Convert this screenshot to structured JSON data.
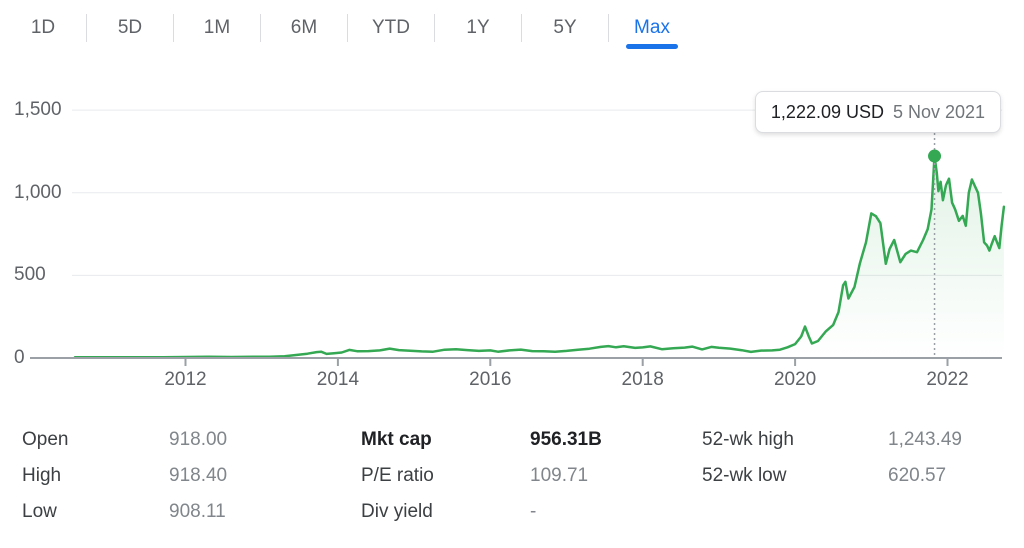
{
  "tabs": {
    "items": [
      {
        "label": "1D",
        "active": false
      },
      {
        "label": "5D",
        "active": false
      },
      {
        "label": "1M",
        "active": false
      },
      {
        "label": "6M",
        "active": false
      },
      {
        "label": "YTD",
        "active": false
      },
      {
        "label": "1Y",
        "active": false
      },
      {
        "label": "5Y",
        "active": false
      },
      {
        "label": "Max",
        "active": true
      }
    ],
    "accent_color": "#1a73e8"
  },
  "tooltip": {
    "price": "1,222.09 USD",
    "date": "5 Nov 2021"
  },
  "stats": {
    "columns": [
      {
        "rows": [
          {
            "label": "Open",
            "value": "918.00",
            "bold": false
          },
          {
            "label": "High",
            "value": "918.40",
            "bold": false
          },
          {
            "label": "Low",
            "value": "908.11",
            "bold": false
          }
        ]
      },
      {
        "rows": [
          {
            "label": "Mkt cap",
            "value": "956.31B",
            "bold": true
          },
          {
            "label": "P/E ratio",
            "value": "109.71",
            "bold": false
          },
          {
            "label": "Div yield",
            "value": "-",
            "bold": false
          }
        ]
      },
      {
        "rows": [
          {
            "label": "52-wk high",
            "value": "1,243.49",
            "bold": false
          },
          {
            "label": "52-wk low",
            "value": "620.57",
            "bold": false
          }
        ]
      }
    ]
  },
  "chart_data": {
    "type": "line",
    "title": "Stock price history, Max range",
    "unit": "USD",
    "line_color": "#34a853",
    "grid": true,
    "legend": "none",
    "x_axis": {
      "ticks": [
        2012,
        2014,
        2016,
        2018,
        2020,
        2022
      ],
      "tick_labels": [
        "2012",
        "2014",
        "2016",
        "2018",
        "2020",
        "2022"
      ],
      "range": [
        2010.55,
        2022.78
      ]
    },
    "y_axis": {
      "ticks": [
        0,
        500,
        1000,
        1500
      ],
      "tick_labels": [
        "0",
        "500",
        "1,000",
        "1,500"
      ],
      "range": [
        0,
        1500
      ]
    },
    "marker": {
      "x": 2021.83,
      "y": 1222.09,
      "price_label": "1,222.09 USD",
      "date_label": "5 Nov 2021"
    },
    "points": [
      [
        2010.55,
        4
      ],
      [
        2010.8,
        4
      ],
      [
        2011.1,
        5
      ],
      [
        2011.4,
        5
      ],
      [
        2011.7,
        5
      ],
      [
        2012.0,
        6
      ],
      [
        2012.3,
        7
      ],
      [
        2012.6,
        6
      ],
      [
        2012.9,
        7
      ],
      [
        2013.1,
        8
      ],
      [
        2013.3,
        11
      ],
      [
        2013.45,
        18
      ],
      [
        2013.6,
        26
      ],
      [
        2013.72,
        36
      ],
      [
        2013.78,
        38
      ],
      [
        2013.85,
        25
      ],
      [
        2013.95,
        29
      ],
      [
        2014.05,
        33
      ],
      [
        2014.15,
        49
      ],
      [
        2014.25,
        41
      ],
      [
        2014.4,
        42
      ],
      [
        2014.55,
        46
      ],
      [
        2014.68,
        57
      ],
      [
        2014.8,
        48
      ],
      [
        2014.95,
        44
      ],
      [
        2015.1,
        40
      ],
      [
        2015.25,
        38
      ],
      [
        2015.4,
        50
      ],
      [
        2015.55,
        53
      ],
      [
        2015.7,
        48
      ],
      [
        2015.85,
        43
      ],
      [
        2016.0,
        46
      ],
      [
        2016.1,
        38
      ],
      [
        2016.25,
        46
      ],
      [
        2016.4,
        51
      ],
      [
        2016.55,
        42
      ],
      [
        2016.7,
        41
      ],
      [
        2016.85,
        38
      ],
      [
        2017.0,
        43
      ],
      [
        2017.15,
        50
      ],
      [
        2017.3,
        56
      ],
      [
        2017.45,
        67
      ],
      [
        2017.55,
        72
      ],
      [
        2017.65,
        65
      ],
      [
        2017.75,
        71
      ],
      [
        2017.9,
        61
      ],
      [
        2018.0,
        64
      ],
      [
        2018.1,
        70
      ],
      [
        2018.25,
        53
      ],
      [
        2018.4,
        59
      ],
      [
        2018.55,
        63
      ],
      [
        2018.65,
        69
      ],
      [
        2018.78,
        52
      ],
      [
        2018.9,
        67
      ],
      [
        2019.0,
        62
      ],
      [
        2019.15,
        57
      ],
      [
        2019.3,
        47
      ],
      [
        2019.42,
        37
      ],
      [
        2019.55,
        45
      ],
      [
        2019.7,
        46
      ],
      [
        2019.8,
        50
      ],
      [
        2019.9,
        65
      ],
      [
        2020.0,
        84
      ],
      [
        2020.08,
        130
      ],
      [
        2020.13,
        190
      ],
      [
        2020.18,
        130
      ],
      [
        2020.22,
        88
      ],
      [
        2020.3,
        103
      ],
      [
        2020.4,
        160
      ],
      [
        2020.5,
        200
      ],
      [
        2020.57,
        278
      ],
      [
        2020.63,
        440
      ],
      [
        2020.66,
        461
      ],
      [
        2020.7,
        360
      ],
      [
        2020.78,
        430
      ],
      [
        2020.85,
        573
      ],
      [
        2020.93,
        700
      ],
      [
        2021.0,
        875
      ],
      [
        2021.06,
        858
      ],
      [
        2021.12,
        816
      ],
      [
        2021.19,
        570
      ],
      [
        2021.24,
        660
      ],
      [
        2021.3,
        714
      ],
      [
        2021.38,
        580
      ],
      [
        2021.45,
        630
      ],
      [
        2021.52,
        650
      ],
      [
        2021.6,
        640
      ],
      [
        2021.68,
        714
      ],
      [
        2021.74,
        780
      ],
      [
        2021.79,
        900
      ],
      [
        2021.83,
        1222.09
      ],
      [
        2021.86,
        1120
      ],
      [
        2021.88,
        1010
      ],
      [
        2021.91,
        1066
      ],
      [
        2021.94,
        955
      ],
      [
        2021.98,
        1046
      ],
      [
        2022.02,
        1085
      ],
      [
        2022.06,
        940
      ],
      [
        2022.1,
        900
      ],
      [
        2022.15,
        830
      ],
      [
        2022.2,
        860
      ],
      [
        2022.24,
        800
      ],
      [
        2022.28,
        1000
      ],
      [
        2022.32,
        1080
      ],
      [
        2022.36,
        1040
      ],
      [
        2022.4,
        1000
      ],
      [
        2022.44,
        870
      ],
      [
        2022.48,
        700
      ],
      [
        2022.52,
        680
      ],
      [
        2022.55,
        650
      ],
      [
        2022.58,
        690
      ],
      [
        2022.62,
        737
      ],
      [
        2022.65,
        700
      ],
      [
        2022.68,
        665
      ],
      [
        2022.71,
        800
      ],
      [
        2022.74,
        915
      ]
    ]
  }
}
